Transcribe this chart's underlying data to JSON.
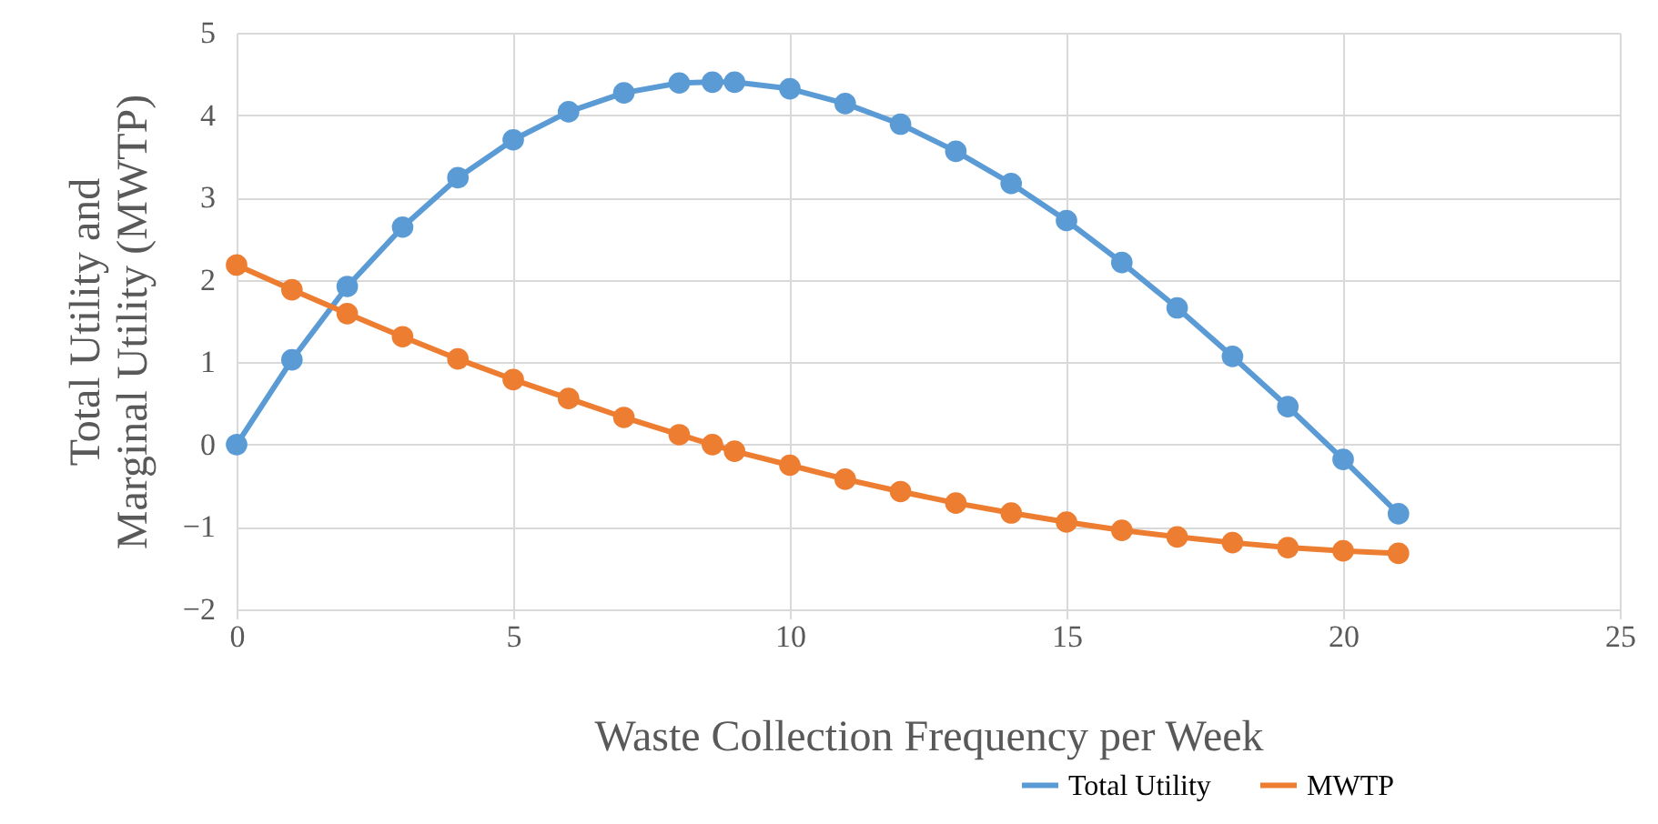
{
  "chart_data": {
    "type": "line",
    "xlabel": "Waste Collection Frequency per Week",
    "ylabel": "Total Utility and Marginal Utility (MWTP)",
    "xlim": [
      0,
      25
    ],
    "xticks": [
      0,
      5,
      10,
      15,
      20,
      25
    ],
    "ylim": [
      -2,
      5
    ],
    "yticks": [
      -2,
      -1,
      0,
      1,
      2,
      3,
      4,
      5
    ],
    "grid": true,
    "legend": "bottom right",
    "marker": "circle",
    "line_style": "solid",
    "series": [
      {
        "name": "Total Utility",
        "color": "#5b9bd5",
        "x": [
          0,
          1,
          2,
          3,
          4,
          5,
          6,
          7,
          8,
          8.6,
          9,
          10,
          11,
          12,
          13,
          14,
          15,
          16,
          17,
          18,
          19,
          20,
          21
        ],
        "values": [
          0,
          1.03,
          1.92,
          2.64,
          3.24,
          3.7,
          4.04,
          4.27,
          4.39,
          4.4,
          4.4,
          4.32,
          4.14,
          3.89,
          3.56,
          3.17,
          2.72,
          2.21,
          1.66,
          1.07,
          0.46,
          -0.18,
          -0.84
        ]
      },
      {
        "name": "MWTP",
        "color": "#ed7d31",
        "x": [
          0,
          1,
          2,
          3,
          4,
          5,
          6,
          7,
          8,
          8.6,
          9,
          10,
          11,
          12,
          13,
          14,
          15,
          16,
          17,
          18,
          19,
          20,
          21
        ],
        "values": [
          2.18,
          1.88,
          1.59,
          1.31,
          1.04,
          0.79,
          0.56,
          0.33,
          0.12,
          0.0,
          -0.08,
          -0.25,
          -0.42,
          -0.57,
          -0.71,
          -0.83,
          -0.94,
          -1.04,
          -1.12,
          -1.19,
          -1.25,
          -1.29,
          -1.32
        ]
      }
    ]
  }
}
